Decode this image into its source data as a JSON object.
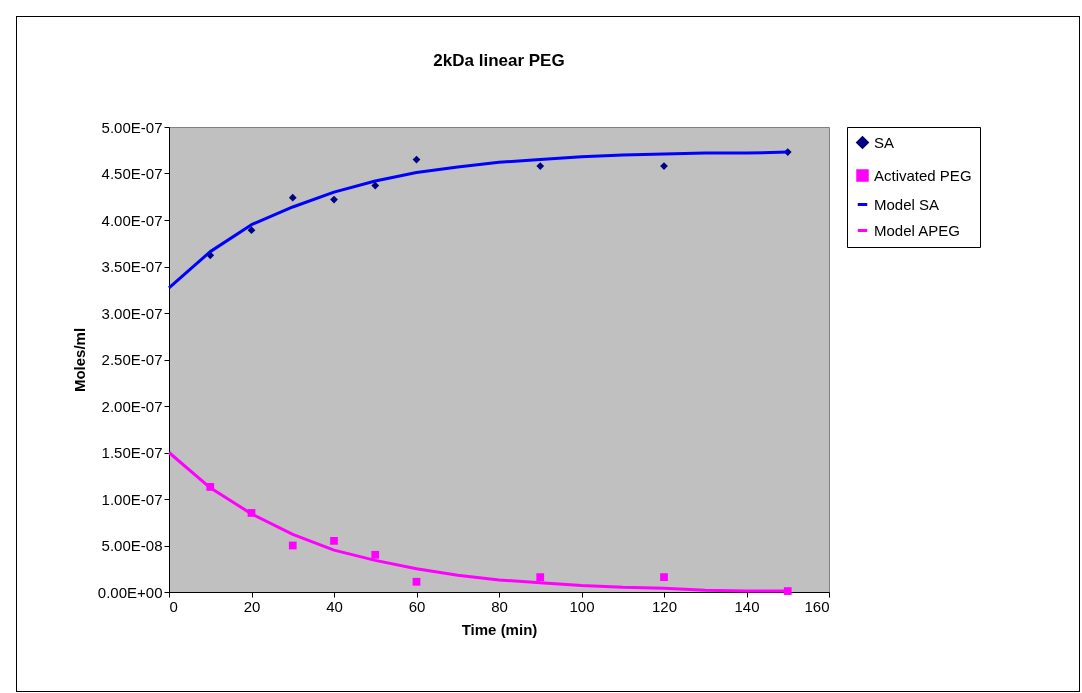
{
  "chart_data": {
    "type": "scatter",
    "title": "2kDa linear PEG",
    "xlabel": "Time (min)",
    "ylabel": "Moles/ml",
    "xlim": [
      0,
      160
    ],
    "xticks": [
      0,
      20,
      40,
      60,
      80,
      100,
      120,
      140,
      160
    ],
    "ylim": [
      0,
      5e-07
    ],
    "yticks": [
      {
        "value": 0,
        "label": "0.00E+00"
      },
      {
        "value": 5e-08,
        "label": "5.00E-08"
      },
      {
        "value": 1e-07,
        "label": "1.00E-07"
      },
      {
        "value": 1.5e-07,
        "label": "1.50E-07"
      },
      {
        "value": 2e-07,
        "label": "2.00E-07"
      },
      {
        "value": 2.5e-07,
        "label": "2.50E-07"
      },
      {
        "value": 3e-07,
        "label": "3.00E-07"
      },
      {
        "value": 3.5e-07,
        "label": "3.50E-07"
      },
      {
        "value": 4e-07,
        "label": "4.00E-07"
      },
      {
        "value": 4.5e-07,
        "label": "4.50E-07"
      },
      {
        "value": 5e-07,
        "label": "5.00E-07"
      }
    ],
    "grid": false,
    "legend": "right",
    "series": [
      {
        "name": "SA",
        "marker": "diamond",
        "color": "#000080",
        "x": [
          10,
          20,
          30,
          40,
          50,
          60,
          90,
          120,
          150
        ],
        "values": [
          3.62e-07,
          3.89e-07,
          4.24e-07,
          4.22e-07,
          4.37e-07,
          4.65e-07,
          4.58e-07,
          4.58e-07,
          4.73e-07
        ]
      },
      {
        "name": "Activated PEG",
        "marker": "square",
        "color": "#ff00ff",
        "x": [
          10,
          20,
          30,
          40,
          50,
          60,
          90,
          120,
          150
        ],
        "values": [
          1.13e-07,
          8.5e-08,
          5e-08,
          5.5e-08,
          4e-08,
          1.1e-08,
          1.6e-08,
          1.6e-08,
          1e-09
        ]
      },
      {
        "name": "Model SA",
        "type": "line",
        "marker": "none",
        "color": "#0000ff",
        "x": [
          0,
          10,
          20,
          30,
          40,
          50,
          60,
          70,
          80,
          90,
          100,
          110,
          120,
          130,
          140,
          150
        ],
        "values": [
          3.27e-07,
          3.66e-07,
          3.95e-07,
          4.14e-07,
          4.3e-07,
          4.42e-07,
          4.51e-07,
          4.57e-07,
          4.62e-07,
          4.65e-07,
          4.68e-07,
          4.7e-07,
          4.71e-07,
          4.72e-07,
          4.72e-07,
          4.73e-07
        ]
      },
      {
        "name": "Model APEG",
        "type": "line",
        "marker": "none",
        "color": "#ff00ff",
        "x": [
          0,
          10,
          20,
          30,
          40,
          50,
          60,
          70,
          80,
          90,
          100,
          110,
          120,
          130,
          140,
          150
        ],
        "values": [
          1.5e-07,
          1.12e-07,
          8.4e-08,
          6.2e-08,
          4.5e-08,
          3.4e-08,
          2.5e-08,
          1.8e-08,
          1.3e-08,
          1e-08,
          7e-09,
          5e-09,
          4e-09,
          2e-09,
          1e-09,
          1e-09
        ]
      }
    ]
  }
}
